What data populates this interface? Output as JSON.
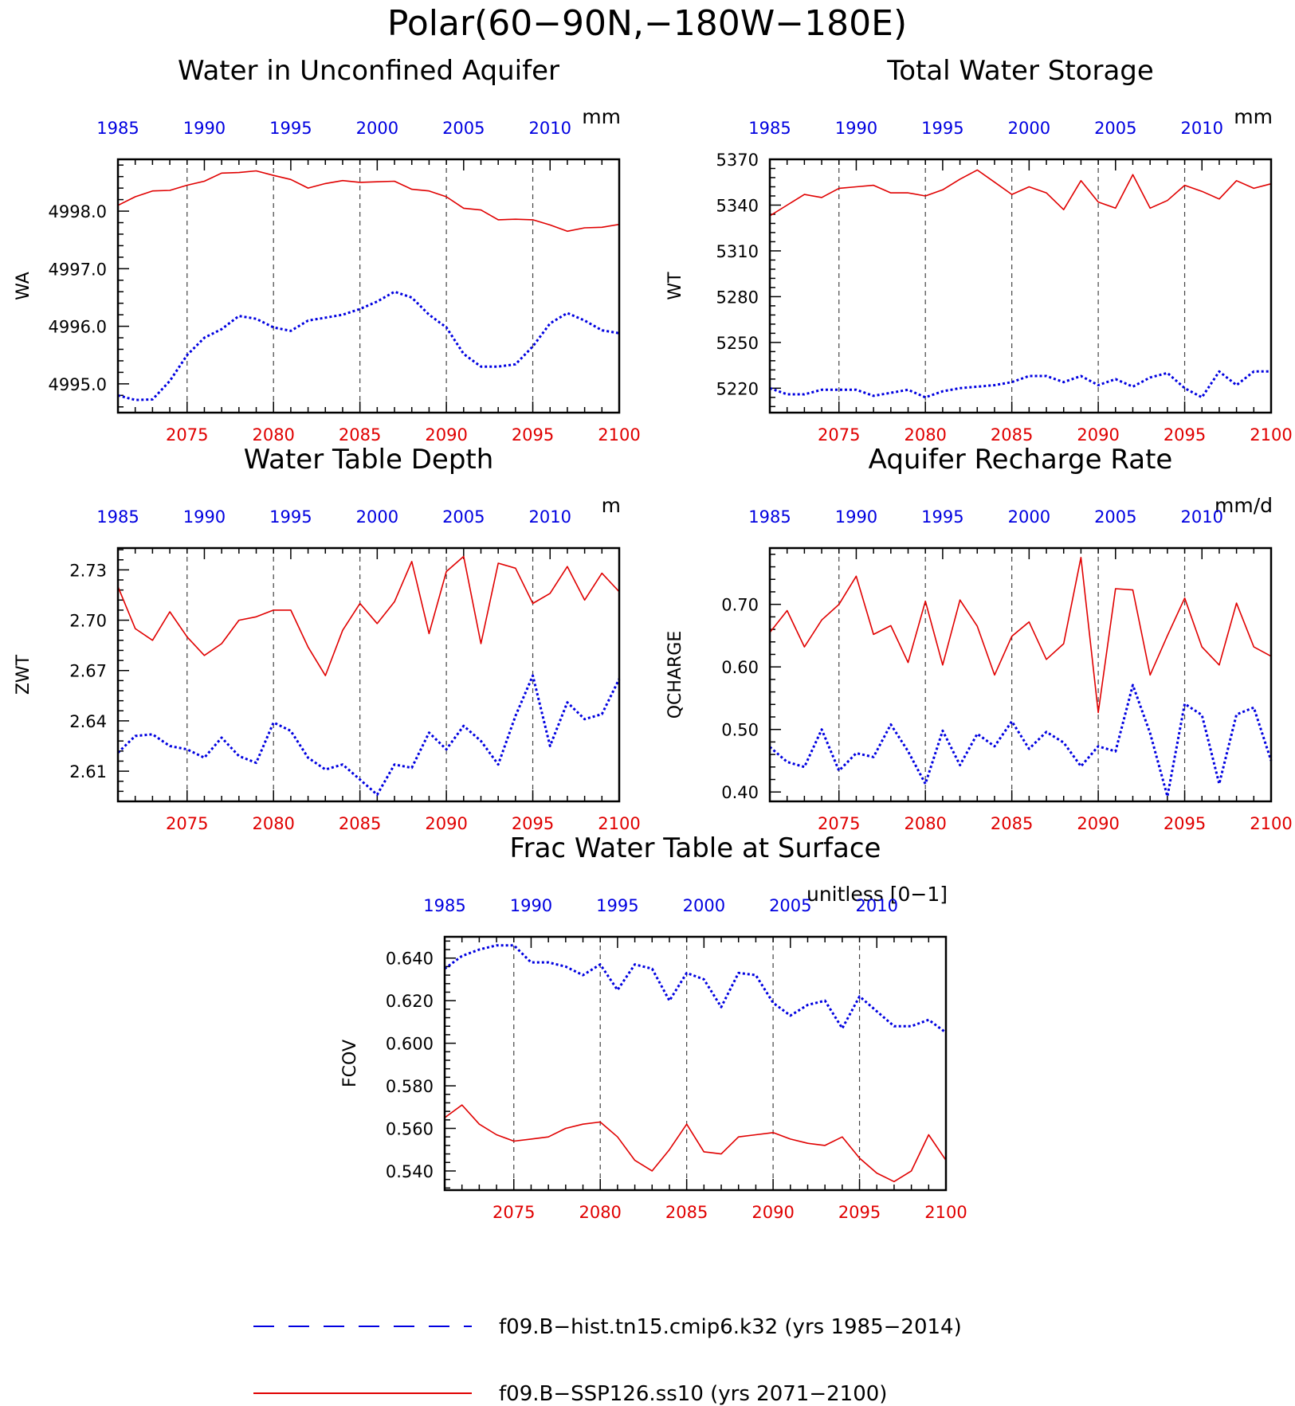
{
  "figure": {
    "title": "Polar(60−90N,−180W−180E)"
  },
  "colors": {
    "hist": "#0000e0",
    "ssp": "#e00000"
  },
  "legend": [
    {
      "label": "f09.B−hist.tn15.cmip6.k32 (yrs 1985−2014)",
      "style": "dashed",
      "color": "#0000e0"
    },
    {
      "label": "f09.B−SSP126.ss10 (yrs 2071−2100)",
      "style": "solid",
      "color": "#e00000"
    }
  ],
  "chart_data": [
    {
      "id": "wa",
      "type": "line",
      "title": "Water in Unconfined Aquifer",
      "ylabel": "WA",
      "units": "mm",
      "ylim": [
        4994.5,
        4998.9
      ],
      "yticks": [
        4995.0,
        4996.0,
        4997.0,
        4998.0
      ],
      "ytick_labels": [
        "4995.0",
        "4996.0",
        "4997.0",
        "4998.0"
      ],
      "x_bottom": [
        2071,
        2100
      ],
      "x_top": [
        1985,
        2014
      ],
      "xticks_bottom": [
        2075,
        2080,
        2085,
        2090,
        2095,
        2100
      ],
      "xticks_top": [
        1985,
        1990,
        1995,
        2000,
        2005,
        2010
      ],
      "series": [
        {
          "name": "f09.B−SSP126.ss10",
          "axis": "bottom",
          "style": "solid",
          "values": [
            4998.1,
            4998.25,
            4998.35,
            4998.36,
            4998.45,
            4998.52,
            4998.66,
            4998.67,
            4998.7,
            4998.62,
            4998.55,
            4998.4,
            4998.48,
            4998.53,
            4998.5,
            4998.51,
            4998.52,
            4998.38,
            4998.35,
            4998.25,
            4998.05,
            4998.02,
            4997.85,
            4997.86,
            4997.85,
            4997.76,
            4997.65,
            4997.71,
            4997.72,
            4997.77
          ]
        },
        {
          "name": "f09.B−hist.tn15.cmip6.k32",
          "axis": "top",
          "style": "dotted",
          "values": [
            4994.8,
            4994.72,
            4994.73,
            4995.05,
            4995.5,
            4995.8,
            4995.95,
            4996.18,
            4996.13,
            4995.98,
            4995.92,
            4996.1,
            4996.15,
            4996.2,
            4996.3,
            4996.43,
            4996.6,
            4996.5,
            4996.2,
            4995.98,
            4995.52,
            4995.3,
            4995.3,
            4995.34,
            4995.65,
            4996.05,
            4996.23,
            4996.1,
            4995.93,
            4995.88
          ]
        }
      ]
    },
    {
      "id": "wt",
      "type": "line",
      "title": "Total Water Storage",
      "ylabel": "WT",
      "units": "mm",
      "ylim": [
        5204,
        5370
      ],
      "yticks": [
        5220,
        5250,
        5280,
        5310,
        5340,
        5370
      ],
      "ytick_labels": [
        "5220",
        "5250",
        "5280",
        "5310",
        "5340",
        "5370"
      ],
      "x_bottom": [
        2071,
        2100
      ],
      "x_top": [
        1985,
        2014
      ],
      "xticks_bottom": [
        2075,
        2080,
        2085,
        2090,
        2095,
        2100
      ],
      "xticks_top": [
        1985,
        1990,
        1995,
        2000,
        2005,
        2010
      ],
      "series": [
        {
          "name": "f09.B−SSP126.ss10",
          "axis": "bottom",
          "style": "solid",
          "values": [
            5333,
            5340,
            5347,
            5345,
            5351,
            5352,
            5353,
            5348,
            5348,
            5346,
            5350,
            5357,
            5363,
            5355,
            5347,
            5352,
            5348,
            5337,
            5356,
            5342,
            5338,
            5360,
            5338,
            5343,
            5353,
            5349,
            5344,
            5356,
            5351,
            5354
          ]
        },
        {
          "name": "f09.B−hist.tn15.cmip6.k32",
          "axis": "top",
          "style": "dotted",
          "values": [
            5220,
            5216,
            5216,
            5219,
            5219,
            5219,
            5215,
            5217,
            5219,
            5214,
            5218,
            5220,
            5221,
            5222,
            5224,
            5228,
            5228,
            5224,
            5228,
            5222,
            5226,
            5221,
            5227,
            5230,
            5220,
            5214,
            5231,
            5222,
            5231,
            5231
          ]
        }
      ]
    },
    {
      "id": "zwt",
      "type": "line",
      "title": "Water Table Depth",
      "ylabel": "ZWT",
      "units": "m",
      "ylim": [
        2.592,
        2.743
      ],
      "yticks": [
        2.61,
        2.64,
        2.67,
        2.7,
        2.73
      ],
      "ytick_labels": [
        "2.61",
        "2.64",
        "2.67",
        "2.70",
        "2.73"
      ],
      "x_bottom": [
        2071,
        2100
      ],
      "x_top": [
        1985,
        2014
      ],
      "xticks_bottom": [
        2075,
        2080,
        2085,
        2090,
        2095,
        2100
      ],
      "xticks_top": [
        1985,
        1990,
        1995,
        2000,
        2005,
        2010
      ],
      "series": [
        {
          "name": "f09.B−SSP126.ss10",
          "axis": "bottom",
          "style": "solid",
          "values": [
            2.72,
            2.695,
            2.688,
            2.705,
            2.69,
            2.679,
            2.686,
            2.7,
            2.702,
            2.706,
            2.706,
            2.684,
            2.667,
            2.694,
            2.71,
            2.698,
            2.711,
            2.735,
            2.692,
            2.729,
            2.738,
            2.686,
            2.734,
            2.731,
            2.71,
            2.716,
            2.732,
            2.712,
            2.728,
            2.717
          ]
        },
        {
          "name": "f09.B−hist.tn15.cmip6.k32",
          "axis": "top",
          "style": "dotted",
          "values": [
            2.621,
            2.631,
            2.632,
            2.625,
            2.623,
            2.618,
            2.63,
            2.619,
            2.615,
            2.639,
            2.634,
            2.618,
            2.611,
            2.614,
            2.605,
            2.596,
            2.614,
            2.612,
            2.633,
            2.623,
            2.637,
            2.628,
            2.614,
            2.643,
            2.667,
            2.625,
            2.651,
            2.641,
            2.644,
            2.665
          ]
        }
      ]
    },
    {
      "id": "qcharge",
      "type": "line",
      "title": "Aquifer Recharge Rate",
      "ylabel": "QCHARGE",
      "units": "mm/d",
      "ylim": [
        0.385,
        0.79
      ],
      "yticks": [
        0.4,
        0.5,
        0.6,
        0.7
      ],
      "ytick_labels": [
        "0.40",
        "0.50",
        "0.60",
        "0.70"
      ],
      "x_bottom": [
        2071,
        2100
      ],
      "x_top": [
        1985,
        2014
      ],
      "xticks_bottom": [
        2075,
        2080,
        2085,
        2090,
        2095,
        2100
      ],
      "xticks_top": [
        1985,
        1990,
        1995,
        2000,
        2005,
        2010
      ],
      "series": [
        {
          "name": "f09.B−SSP126.ss10",
          "axis": "bottom",
          "style": "solid",
          "values": [
            0.655,
            0.69,
            0.632,
            0.675,
            0.7,
            0.745,
            0.652,
            0.666,
            0.607,
            0.705,
            0.603,
            0.707,
            0.665,
            0.587,
            0.649,
            0.672,
            0.612,
            0.637,
            0.775,
            0.527,
            0.725,
            0.723,
            0.587,
            0.65,
            0.71,
            0.632,
            0.603,
            0.702,
            0.632,
            0.617
          ]
        },
        {
          "name": "f09.B−hist.tn15.cmip6.k32",
          "axis": "top",
          "style": "dotted",
          "values": [
            0.472,
            0.448,
            0.44,
            0.5,
            0.434,
            0.462,
            0.456,
            0.508,
            0.465,
            0.413,
            0.498,
            0.443,
            0.493,
            0.473,
            0.513,
            0.469,
            0.496,
            0.479,
            0.441,
            0.473,
            0.465,
            0.571,
            0.494,
            0.393,
            0.541,
            0.523,
            0.413,
            0.524,
            0.535,
            0.45
          ]
        }
      ]
    },
    {
      "id": "fcov",
      "type": "line",
      "title": "Frac Water Table at Surface",
      "ylabel": "FCOV",
      "units": "unitless [0−1]",
      "ylim": [
        0.531,
        0.65
      ],
      "yticks": [
        0.54,
        0.56,
        0.58,
        0.6,
        0.62,
        0.64
      ],
      "ytick_labels": [
        "0.540",
        "0.560",
        "0.580",
        "0.600",
        "0.620",
        "0.640"
      ],
      "x_bottom": [
        2071,
        2100
      ],
      "x_top": [
        1985,
        2014
      ],
      "xticks_bottom": [
        2075,
        2080,
        2085,
        2090,
        2095,
        2100
      ],
      "xticks_top": [
        1985,
        1990,
        1995,
        2000,
        2005,
        2010
      ],
      "series": [
        {
          "name": "f09.B−hist.tn15.cmip6.k32",
          "axis": "top",
          "style": "dotted",
          "values": [
            0.635,
            0.641,
            0.644,
            0.646,
            0.646,
            0.638,
            0.638,
            0.636,
            0.632,
            0.637,
            0.625,
            0.637,
            0.635,
            0.62,
            0.633,
            0.63,
            0.617,
            0.633,
            0.632,
            0.619,
            0.613,
            0.618,
            0.62,
            0.607,
            0.622,
            0.615,
            0.608,
            0.608,
            0.611,
            0.605
          ]
        },
        {
          "name": "f09.B−SSP126.ss10",
          "axis": "bottom",
          "style": "solid",
          "values": [
            0.565,
            0.571,
            0.562,
            0.557,
            0.554,
            0.555,
            0.556,
            0.56,
            0.562,
            0.563,
            0.556,
            0.545,
            0.54,
            0.55,
            0.562,
            0.549,
            0.548,
            0.556,
            0.557,
            0.558,
            0.555,
            0.553,
            0.552,
            0.556,
            0.546,
            0.539,
            0.535,
            0.54,
            0.557,
            0.545
          ]
        }
      ]
    }
  ]
}
